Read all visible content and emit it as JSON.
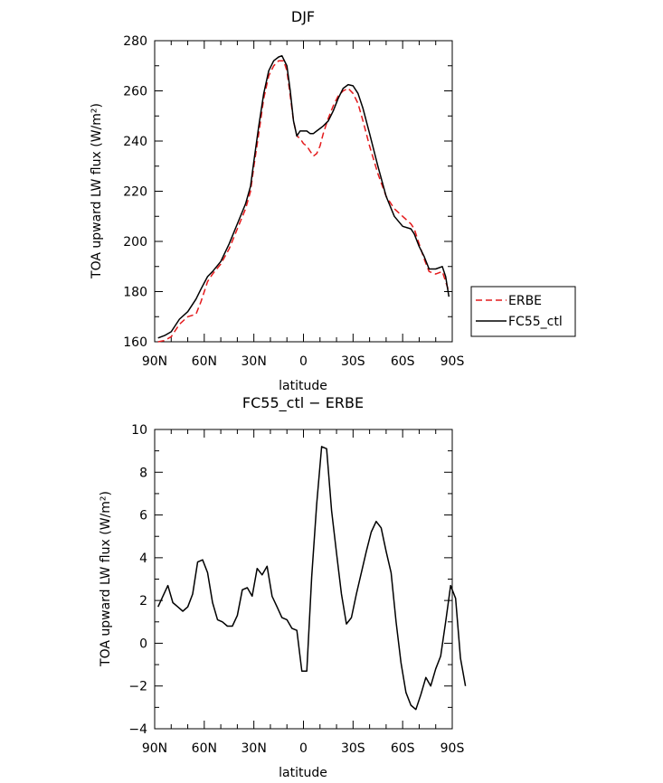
{
  "chart_data": [
    {
      "type": "line",
      "title": "DJF",
      "xlabel": "latitude",
      "ylabel": "TOA upward LW flux (W/m²)",
      "xlim": [
        -90,
        90
      ],
      "ylim": [
        160,
        280
      ],
      "x_ticks": [
        -90,
        -60,
        -30,
        0,
        30,
        60,
        90
      ],
      "x_tick_labels": [
        "90N",
        "60N",
        "30N",
        "0",
        "30S",
        "60S",
        "90S"
      ],
      "y_ticks": [
        160,
        180,
        200,
        220,
        240,
        260,
        280
      ],
      "y_tick_labels": [
        "160",
        "180",
        "200",
        "220",
        "240",
        "260",
        "280"
      ],
      "grid": false,
      "legend_position": "right",
      "series": [
        {
          "name": "ERBE",
          "color": "#e41a1c",
          "style": "dashed",
          "points": [
            [
              -88,
              160
            ],
            [
              -84,
              160.5
            ],
            [
              -80,
              162
            ],
            [
              -75,
              167
            ],
            [
              -70,
              170
            ],
            [
              -65,
              171
            ],
            [
              -62,
              176
            ],
            [
              -58,
              184
            ],
            [
              -55,
              187
            ],
            [
              -50,
              191
            ],
            [
              -45,
              197
            ],
            [
              -40,
              205
            ],
            [
              -35,
              213
            ],
            [
              -32,
              220
            ],
            [
              -30,
              230
            ],
            [
              -27,
              243
            ],
            [
              -24,
              257
            ],
            [
              -21,
              266
            ],
            [
              -18,
              270
            ],
            [
              -15,
              272
            ],
            [
              -12,
              272
            ],
            [
              -10,
              268
            ],
            [
              -8,
              258
            ],
            [
              -6,
              248
            ],
            [
              -4,
              242
            ],
            [
              -2,
              241
            ],
            [
              0,
              239
            ],
            [
              2,
              238
            ],
            [
              4,
              236
            ],
            [
              6,
              234
            ],
            [
              8,
              235
            ],
            [
              10,
              238
            ],
            [
              12,
              243
            ],
            [
              15,
              249
            ],
            [
              18,
              254
            ],
            [
              21,
              258
            ],
            [
              24,
              260
            ],
            [
              27,
              261
            ],
            [
              30,
              259
            ],
            [
              33,
              255
            ],
            [
              36,
              248
            ],
            [
              40,
              238
            ],
            [
              45,
              227
            ],
            [
              50,
              218
            ],
            [
              55,
              213
            ],
            [
              60,
              210
            ],
            [
              65,
              207
            ],
            [
              67,
              205
            ],
            [
              70,
              199
            ],
            [
              73,
              193
            ],
            [
              76,
              188
            ],
            [
              80,
              187
            ],
            [
              84,
              188
            ],
            [
              86,
              184
            ],
            [
              88,
              180
            ]
          ]
        },
        {
          "name": "FC55_ctl",
          "color": "#000000",
          "style": "solid",
          "points": [
            [
              -88,
              161.5
            ],
            [
              -84,
              162.5
            ],
            [
              -80,
              164
            ],
            [
              -75,
              169
            ],
            [
              -70,
              172
            ],
            [
              -65,
              177
            ],
            [
              -62,
              181
            ],
            [
              -58,
              186
            ],
            [
              -55,
              188
            ],
            [
              -50,
              192
            ],
            [
              -45,
              199
            ],
            [
              -40,
              207
            ],
            [
              -35,
              215
            ],
            [
              -32,
              222
            ],
            [
              -30,
              232
            ],
            [
              -27,
              246
            ],
            [
              -24,
              259
            ],
            [
              -21,
              268
            ],
            [
              -18,
              272
            ],
            [
              -15,
              273.5
            ],
            [
              -13,
              274
            ],
            [
              -10,
              270
            ],
            [
              -8,
              260
            ],
            [
              -6,
              248
            ],
            [
              -4,
              242
            ],
            [
              -2,
              244
            ],
            [
              0,
              244
            ],
            [
              2,
              244
            ],
            [
              4,
              243
            ],
            [
              6,
              243
            ],
            [
              8,
              244
            ],
            [
              10,
              245
            ],
            [
              12,
              246
            ],
            [
              15,
              248
            ],
            [
              18,
              252
            ],
            [
              21,
              257
            ],
            [
              24,
              261
            ],
            [
              27,
              262.5
            ],
            [
              30,
              262
            ],
            [
              33,
              259
            ],
            [
              36,
              253
            ],
            [
              40,
              243
            ],
            [
              45,
              230
            ],
            [
              50,
              218
            ],
            [
              55,
              210
            ],
            [
              60,
              206
            ],
            [
              65,
              205
            ],
            [
              67,
              203
            ],
            [
              70,
              198
            ],
            [
              73,
              194
            ],
            [
              76,
              189
            ],
            [
              80,
              189
            ],
            [
              84,
              190
            ],
            [
              86,
              186
            ],
            [
              88,
              178
            ]
          ]
        }
      ]
    },
    {
      "type": "line",
      "title": "FC55_ctl − ERBE",
      "xlabel": "latitude",
      "ylabel": "TOA upward LW flux (W/m²)",
      "xlim": [
        -90,
        90
      ],
      "ylim": [
        -4,
        10
      ],
      "x_ticks": [
        -90,
        -60,
        -30,
        0,
        30,
        60,
        90
      ],
      "x_tick_labels": [
        "90N",
        "60N",
        "30N",
        "0",
        "30S",
        "60S",
        "90S"
      ],
      "y_ticks": [
        -4,
        -2,
        0,
        2,
        4,
        6,
        8,
        10
      ],
      "y_tick_labels": [
        "−4",
        "−2",
        "0",
        "2",
        "4",
        "6",
        "8",
        "10"
      ],
      "grid": false,
      "series": [
        {
          "color": "#000000",
          "style": "solid",
          "points": [
            [
              -88,
              1.7
            ],
            [
              -85,
              2.2
            ],
            [
              -82,
              2.7
            ],
            [
              -79,
              1.9
            ],
            [
              -76,
              1.7
            ],
            [
              -73,
              1.5
            ],
            [
              -70,
              1.7
            ],
            [
              -67,
              2.3
            ],
            [
              -64,
              3.8
            ],
            [
              -61,
              3.9
            ],
            [
              -58,
              3.3
            ],
            [
              -55,
              1.9
            ],
            [
              -52,
              1.1
            ],
            [
              -49,
              1.0
            ],
            [
              -46,
              0.8
            ],
            [
              -43,
              0.8
            ],
            [
              -40,
              1.3
            ],
            [
              -37,
              2.5
            ],
            [
              -34,
              2.6
            ],
            [
              -31,
              2.2
            ],
            [
              -28,
              3.5
            ],
            [
              -25,
              3.2
            ],
            [
              -22,
              3.6
            ],
            [
              -19,
              2.2
            ],
            [
              -16,
              1.7
            ],
            [
              -13,
              1.2
            ],
            [
              -10,
              1.1
            ],
            [
              -7,
              0.7
            ],
            [
              -4,
              0.6
            ],
            [
              -1,
              -1.3
            ],
            [
              2,
              -1.3
            ],
            [
              5,
              3.1
            ],
            [
              8,
              6.5
            ],
            [
              11,
              9.2
            ],
            [
              14,
              9.1
            ],
            [
              17,
              6.2
            ],
            [
              20,
              4.2
            ],
            [
              23,
              2.3
            ],
            [
              26,
              0.9
            ],
            [
              29,
              1.2
            ],
            [
              32,
              2.3
            ],
            [
              35,
              3.3
            ],
            [
              38,
              4.3
            ],
            [
              41,
              5.2
            ],
            [
              44,
              5.7
            ],
            [
              47,
              5.4
            ],
            [
              50,
              4.3
            ],
            [
              53,
              3.3
            ],
            [
              56,
              1.0
            ],
            [
              59,
              -0.9
            ],
            [
              62,
              -2.3
            ],
            [
              65,
              -2.9
            ],
            [
              68,
              -3.1
            ],
            [
              71,
              -2.4
            ],
            [
              74,
              -1.6
            ],
            [
              77,
              -2.0
            ],
            [
              80,
              -1.2
            ],
            [
              83,
              -0.6
            ],
            [
              86,
              1.0
            ],
            [
              89,
              2.7
            ],
            [
              92,
              2.1
            ],
            [
              95,
              -0.7
            ],
            [
              98,
              -2.0
            ]
          ]
        }
      ]
    }
  ]
}
